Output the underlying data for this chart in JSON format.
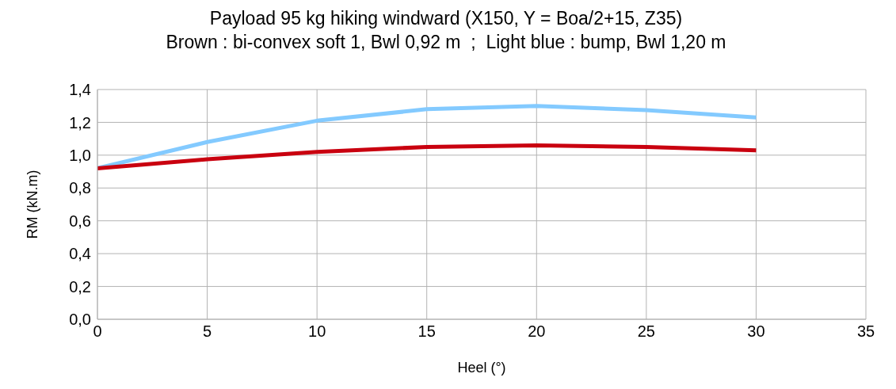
{
  "chart_data": {
    "type": "line",
    "title": "Payload 95 kg hiking windward (X150, Y = Boa/2+15, Z35)",
    "subtitle": "Brown : bi-convex soft 1, Bwl 0,92 m  ;  Light blue : bump, Bwl 1,20 m",
    "xlabel": "Heel (°)",
    "ylabel": "RM (kN.m)",
    "x": [
      0,
      5,
      10,
      15,
      20,
      25,
      30
    ],
    "series": [
      {
        "color": "#83caff",
        "values": [
          0.92,
          1.08,
          1.21,
          1.28,
          1.3,
          1.275,
          1.23
        ]
      },
      {
        "color": "#c9000f",
        "values": [
          0.92,
          0.975,
          1.02,
          1.05,
          1.06,
          1.05,
          1.03
        ]
      }
    ],
    "xlim": [
      0,
      35
    ],
    "xticks": [
      0,
      5,
      10,
      15,
      20,
      25,
      30,
      35
    ],
    "ylim": [
      0,
      1.4
    ],
    "yticks": [
      {
        "value": 0,
        "label": "0,0"
      },
      {
        "value": 0.2,
        "label": "0,2"
      },
      {
        "value": 0.4,
        "label": "0,4"
      },
      {
        "value": 0.6,
        "label": "0,6"
      },
      {
        "value": 0.8,
        "label": "0,8"
      },
      {
        "value": 1.0,
        "label": "1,0"
      },
      {
        "value": 1.2,
        "label": "1,2"
      },
      {
        "value": 1.4,
        "label": "1,4"
      }
    ],
    "grid": true,
    "legend": false,
    "marker": "none",
    "line_style": "solid"
  }
}
